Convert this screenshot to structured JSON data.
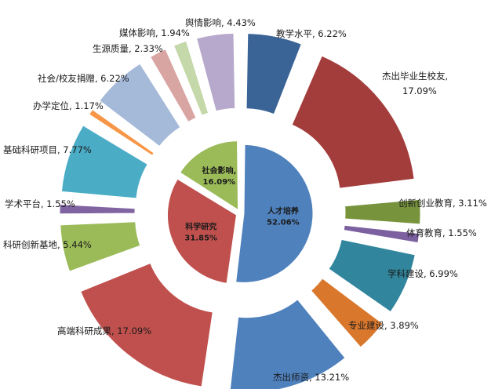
{
  "chart_data": {
    "type": "pie",
    "title": "",
    "inner": [
      {
        "name": "人才培养",
        "percent": "52.06%",
        "value": 52.06,
        "color": "#4f81bd"
      },
      {
        "name": "科学研究",
        "percent": "31.85%",
        "value": 31.85,
        "color": "#c0504d"
      },
      {
        "name": "社会影响,",
        "percent": "16.09%",
        "value": 16.09,
        "color": "#9bbb59"
      }
    ],
    "outer": [
      {
        "label": "教学水平, 6.22%",
        "value": 6.22,
        "color": "#3b6496",
        "group": 0
      },
      {
        "label": "杰出毕业生校友, 17.09%",
        "value": 17.09,
        "color": "#a33d3b",
        "group": 0
      },
      {
        "label": "创新创业教育, 3.11%",
        "value": 3.11,
        "color": "#77933c",
        "group": 0
      },
      {
        "label": "体育教育, 1.55%",
        "value": 1.55,
        "color": "#7d60a0",
        "group": 0
      },
      {
        "label": "学科建设, 6.99%",
        "value": 6.99,
        "color": "#31859c",
        "group": 0
      },
      {
        "label": "专业建设, 3.89%",
        "value": 3.89,
        "color": "#d9782d",
        "group": 0
      },
      {
        "label": "杰出师资, 13.21%",
        "value": 13.21,
        "color": "#4f81bd",
        "group": 0
      },
      {
        "label": "高端科研成果, 17.09%",
        "value": 17.09,
        "color": "#c0504d",
        "group": 1
      },
      {
        "label": "科研创新基地, 5.44%",
        "value": 5.44,
        "color": "#9bbb59",
        "group": 1
      },
      {
        "label": "学术平台, 1.55%",
        "value": 1.55,
        "color": "#8064a2",
        "group": 1
      },
      {
        "label": "基础科研项目, 7.77%",
        "value": 7.77,
        "color": "#4bacc6",
        "group": 1
      },
      {
        "label": "办学定位, 1.17%",
        "value": 1.17,
        "color": "#f79646",
        "group": 2
      },
      {
        "label": "社会/校友捐赠, 6.22%",
        "value": 6.22,
        "color": "#a5b9d9",
        "group": 2
      },
      {
        "label": "生源质量, 2.33%",
        "value": 2.33,
        "color": "#d9a5a3",
        "group": 2
      },
      {
        "label": "媒体影响, 1.94%",
        "value": 1.94,
        "color": "#c4d8a9",
        "group": 2
      },
      {
        "label": "舆情影响, 4.43%",
        "value": 4.43,
        "color": "#b7a9cc",
        "group": 2
      }
    ]
  }
}
